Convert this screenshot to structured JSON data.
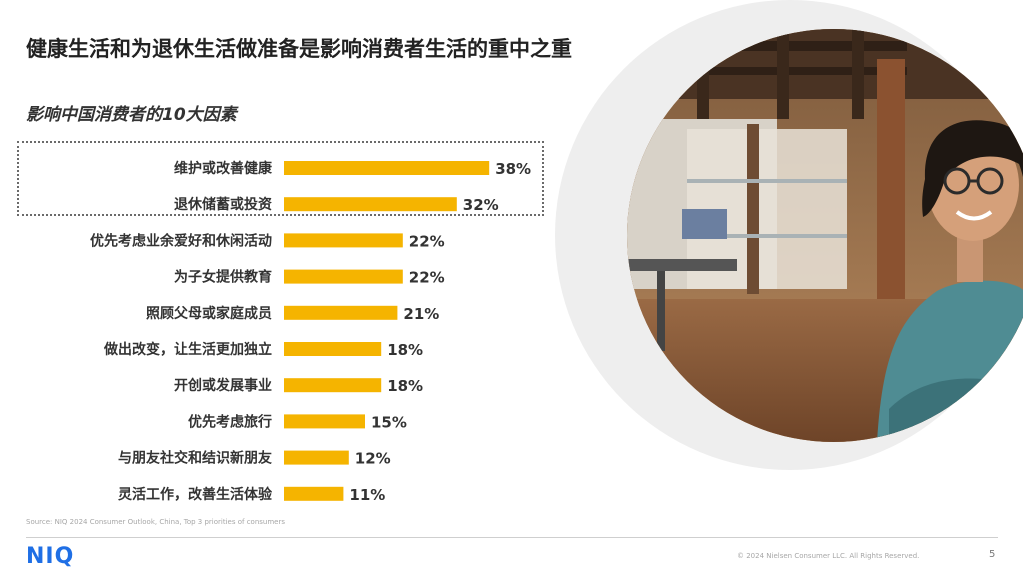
{
  "slide": {
    "title": "健康生活和为退休生活做准备是影响消费者生活的重中之重",
    "subtitle": "影响中国消费者的10大因素",
    "source": "Source: NIQ 2024 Consumer Outlook, China, Top 3 priorities of consumers",
    "copyright": "© 2024 Nielsen Consumer LLC. All Rights Reserved.",
    "page_number": "5",
    "logo_text": "NIQ",
    "photo": "smiling woman with glasses and arms crossed in a bright loft office"
  },
  "colors": {
    "bar": "#F5B400",
    "logo": "#1F6FE5",
    "highlight_border": "#6A6A6A"
  },
  "chart_data": {
    "type": "bar",
    "orientation": "horizontal",
    "categories": [
      "维护或改善健康",
      "退休储蓄或投资",
      "优先考虑业余爱好和休闲活动",
      "为子女提供教育",
      "照顾父母或家庭成员",
      "做出改变，让生活更加独立",
      "开创或发展事业",
      "优先考虑旅行",
      "与朋友社交和结识新朋友",
      "灵活工作，改善生活体验"
    ],
    "values": [
      38,
      32,
      22,
      22,
      21,
      18,
      18,
      15,
      12,
      11
    ],
    "value_labels": [
      "38%",
      "32%",
      "22%",
      "22%",
      "21%",
      "18%",
      "18%",
      "15%",
      "12%",
      "11%"
    ],
    "unit": "%",
    "grid": false,
    "legend": "none",
    "highlighted_categories": [
      "维护或改善健康",
      "退休储蓄或投资"
    ]
  }
}
